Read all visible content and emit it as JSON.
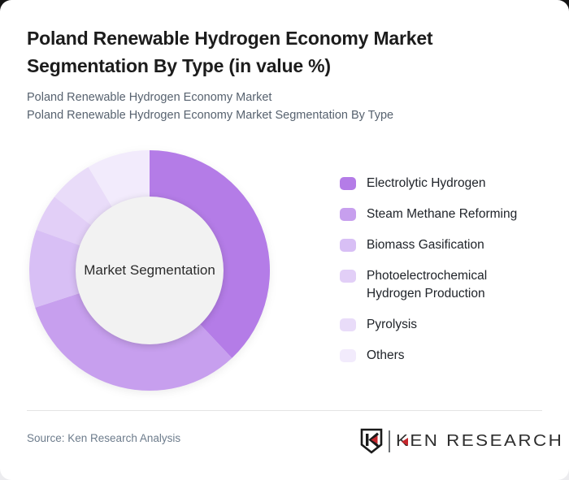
{
  "page": {
    "title": "Poland Renewable Hydrogen Economy Market Segmentation By Type (in value %)",
    "subtitle_line1": "Poland Renewable Hydrogen Economy Market",
    "subtitle_line2": "Poland Renewable Hydrogen Economy Market Segmentation By Type"
  },
  "chart_data": {
    "type": "pie",
    "subtype": "donut",
    "title": "Poland Renewable Hydrogen Economy Market Segmentation By Type (in value %)",
    "center_label": "Market Segmentation",
    "unit": "value %",
    "start_angle_deg": 0,
    "direction": "clockwise",
    "donut_hole_ratio": 0.61,
    "legend_position": "right",
    "series": [
      {
        "name": "Electrolytic Hydrogen",
        "value": 38,
        "color": "#b47ce7"
      },
      {
        "name": "Steam Methane Reforming",
        "value": 32,
        "color": "#c79fee"
      },
      {
        "name": "Biomass Gasification",
        "value": 10.5,
        "color": "#d8bff5"
      },
      {
        "name": "Photoelectrochemical Hydrogen Production",
        "value": 5,
        "color": "#e2cff7"
      },
      {
        "name": "Pyrolysis",
        "value": 6,
        "color": "#e9dcf9"
      },
      {
        "name": "Others",
        "value": 8.5,
        "color": "#f2ebfc"
      }
    ]
  },
  "footer": {
    "source_text": "Source: Ken Research Analysis",
    "logo": {
      "emblem_letter": "K",
      "brand_text": "KEN RESEARCH",
      "accent_color": "#c5262c",
      "text_color": "#2e2e2e"
    }
  },
  "colors": {
    "card_bg": "#ffffff",
    "title_text": "#1c1c1c",
    "subtitle_text": "#57626f",
    "center_circle": "#f2f2f2",
    "divider": "#e4e4e4",
    "source_text": "#6d7c8c"
  }
}
